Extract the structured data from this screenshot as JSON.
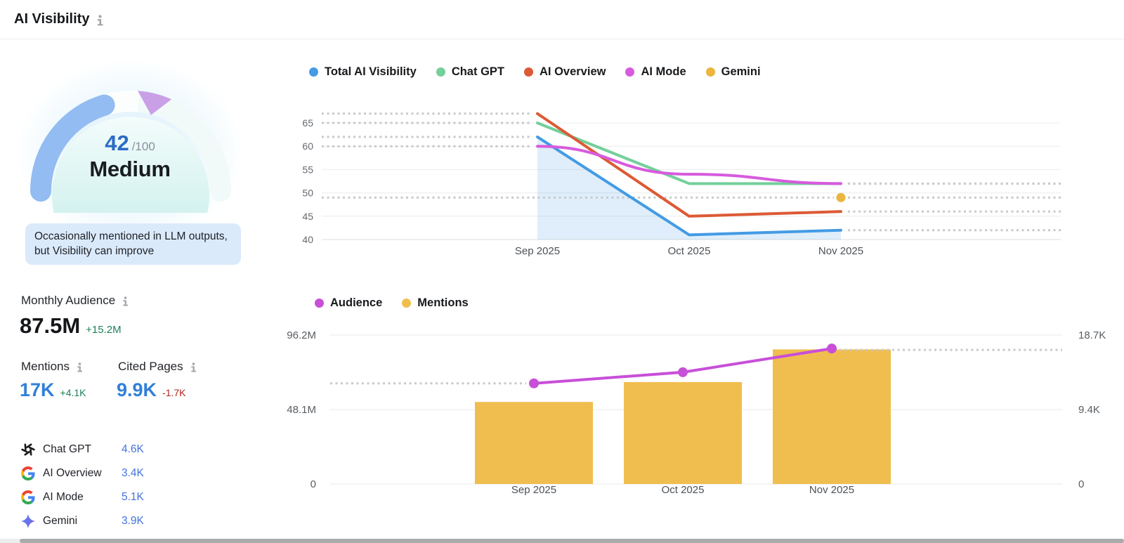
{
  "header": {
    "title": "AI Visibility"
  },
  "score_panel": {
    "score": "42",
    "score_max": "/100",
    "rating": "Medium",
    "description": "Occasionally mentioned in LLM outputs, but Visibility can improve",
    "arc_blue": "#93BCF2",
    "arc_purple": "#C9A0E6"
  },
  "metrics": {
    "monthly_audience": {
      "label": "Monthly Audience",
      "value": "87.5M",
      "delta": "+15.2M",
      "trend": "up"
    },
    "mentions": {
      "label": "Mentions",
      "value": "17K",
      "delta": "+4.1K",
      "trend": "up"
    },
    "cited_pages": {
      "label": "Cited Pages",
      "value": "9.9K",
      "delta": "-1.7K",
      "trend": "down"
    }
  },
  "platforms": [
    {
      "name": "Chat GPT",
      "value": "4.6K",
      "icon": "chatgpt-icon"
    },
    {
      "name": "AI Overview",
      "value": "3.4K",
      "icon": "google-icon"
    },
    {
      "name": "AI Mode",
      "value": "5.1K",
      "icon": "google-icon"
    },
    {
      "name": "Gemini",
      "value": "3.9K",
      "icon": "gemini-icon"
    }
  ],
  "chart_data": [
    {
      "type": "line",
      "title": "AI Visibility by platform",
      "categories": [
        "Sep 2025",
        "Oct 2025",
        "Nov 2025"
      ],
      "series": [
        {
          "name": "Total AI Visibility",
          "color": "#449BE4",
          "values": [
            62,
            41,
            42
          ],
          "area": true
        },
        {
          "name": "Chat GPT",
          "color": "#74CF9B",
          "values": [
            65,
            52,
            52
          ]
        },
        {
          "name": "AI Overview",
          "color": "#DC5A35",
          "values": [
            67,
            45,
            46
          ]
        },
        {
          "name": "AI Mode",
          "color": "#D75BDD",
          "values": [
            60,
            54,
            52
          ],
          "smooth": true
        },
        {
          "name": "Gemini",
          "color": "#E9B63E",
          "values": [
            null,
            null,
            49
          ]
        }
      ],
      "ylim": [
        40,
        68
      ],
      "yticks": [
        65,
        60,
        55,
        50,
        45,
        40
      ],
      "grid": true,
      "legend_position": "top",
      "dotted_guides": true
    },
    {
      "type": "bar+line",
      "title": "Audience and Mentions",
      "categories": [
        "Sep 2025",
        "Oct 2025",
        "Nov 2025"
      ],
      "series": [
        {
          "name": "Audience",
          "chart": "line",
          "axis": "left",
          "color": "#C84FD8",
          "values": [
            65000000,
            72200000,
            87500000
          ]
        },
        {
          "name": "Mentions",
          "chart": "bar",
          "axis": "right",
          "color": "#F0BE4F",
          "values": [
            10300,
            12800,
            16900
          ]
        }
      ],
      "left_axis": {
        "tick_labels": [
          "96.2M",
          "48.1M",
          "0"
        ],
        "tick_values": [
          96200000,
          48100000,
          0
        ],
        "max": 96200000
      },
      "right_axis": {
        "tick_labels": [
          "18.7K",
          "9.4K",
          "0"
        ],
        "tick_values": [
          18700,
          9400,
          0
        ],
        "max": 18700
      },
      "grid": true,
      "legend_position": "top",
      "dotted_guides": true
    }
  ]
}
